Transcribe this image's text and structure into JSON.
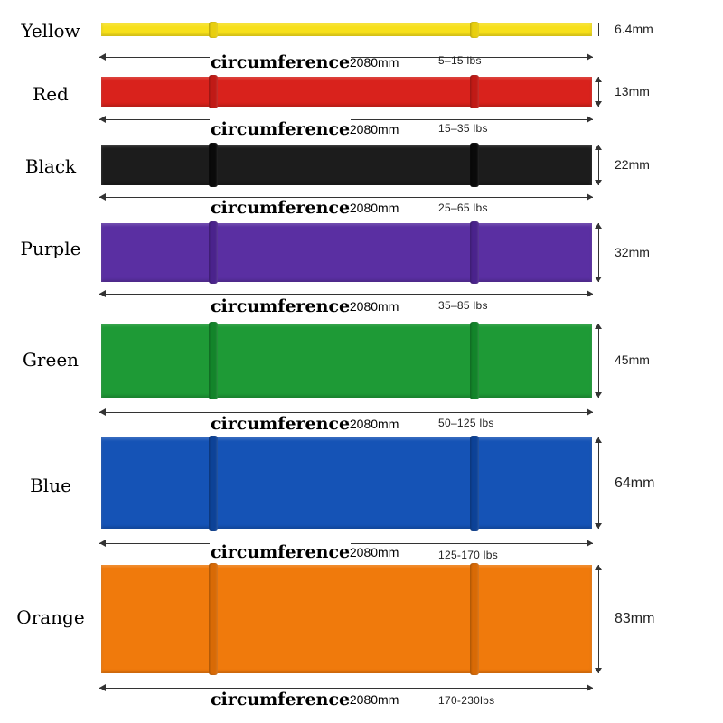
{
  "circumference_label": "circumference",
  "length_prefix": ":",
  "bands": [
    {
      "name": "Yellow",
      "width": "6.4mm",
      "length": "2080mm",
      "resistance": "5–15 lbs",
      "color": "#f7e01a",
      "seam_color": "#e8cf10"
    },
    {
      "name": "Red",
      "width": "13mm",
      "length": "2080mm",
      "resistance": "15–35 lbs",
      "color": "#d9221c",
      "seam_color": "#c01a16"
    },
    {
      "name": "Black",
      "width": "22mm",
      "length": "2080mm",
      "resistance": "25–65 lbs",
      "color": "#1c1c1c",
      "seam_color": "#0a0a0a"
    },
    {
      "name": "Purple",
      "width": "32mm",
      "length": "2080mm",
      "resistance": "35–85 lbs",
      "color": "#5a2fa2",
      "seam_color": "#4a238c"
    },
    {
      "name": "Green",
      "width": "45mm",
      "length": "2080mm",
      "resistance": "50–125 lbs",
      "color": "#1e9a36",
      "seam_color": "#13842a"
    },
    {
      "name": "Blue",
      "width": "64mm",
      "length": "2080mm",
      "resistance": "125-170 lbs",
      "color": "#1553b6",
      "seam_color": "#0d4297"
    },
    {
      "name": "Orange",
      "width": "83mm",
      "length": "2080mm",
      "resistance": "170-230lbs",
      "color": "#f07a0c",
      "seam_color": "#d86a06"
    }
  ]
}
